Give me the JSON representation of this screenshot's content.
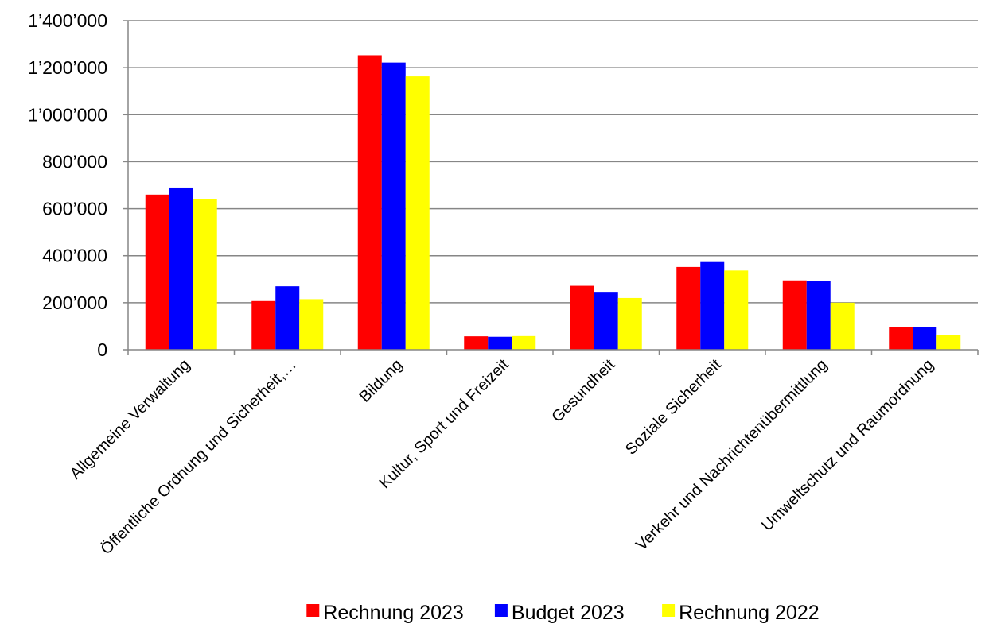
{
  "chart_data": {
    "type": "bar",
    "title": "",
    "xlabel": "",
    "ylabel": "",
    "categories": [
      "Allgemeine Verwaltung",
      "Öffentliche Ordnung und Sicherheit,…",
      "Bildung",
      "Kultur, Sport und Freizeit",
      "Gesundheit",
      "Soziale Sicherheit",
      "Verkehr und Nachrichtenübermittlung",
      "Umweltschutz und Raumordnung"
    ],
    "series": [
      {
        "name": "Rechnung 2023",
        "color": "#ff0000",
        "values": [
          660000,
          207000,
          1253000,
          57000,
          272000,
          352000,
          295000,
          97000
        ]
      },
      {
        "name": "Budget 2023",
        "color": "#0000ff",
        "values": [
          690000,
          270000,
          1222000,
          55000,
          243000,
          373000,
          291000,
          98000
        ]
      },
      {
        "name": "Rechnung 2022",
        "color": "#ffff00",
        "values": [
          640000,
          215000,
          1163000,
          58000,
          220000,
          337000,
          200000,
          63000
        ]
      }
    ],
    "ylim": [
      0,
      1400000
    ],
    "yticks": [
      0,
      200000,
      400000,
      600000,
      800000,
      1000000,
      1200000,
      1400000
    ],
    "ytick_labels": [
      "0",
      "200’000",
      "400’000",
      "600’000",
      "800’000",
      "1’000’000",
      "1’200’000",
      "1’400’000"
    ],
    "grid": true,
    "legend_position": "bottom"
  }
}
